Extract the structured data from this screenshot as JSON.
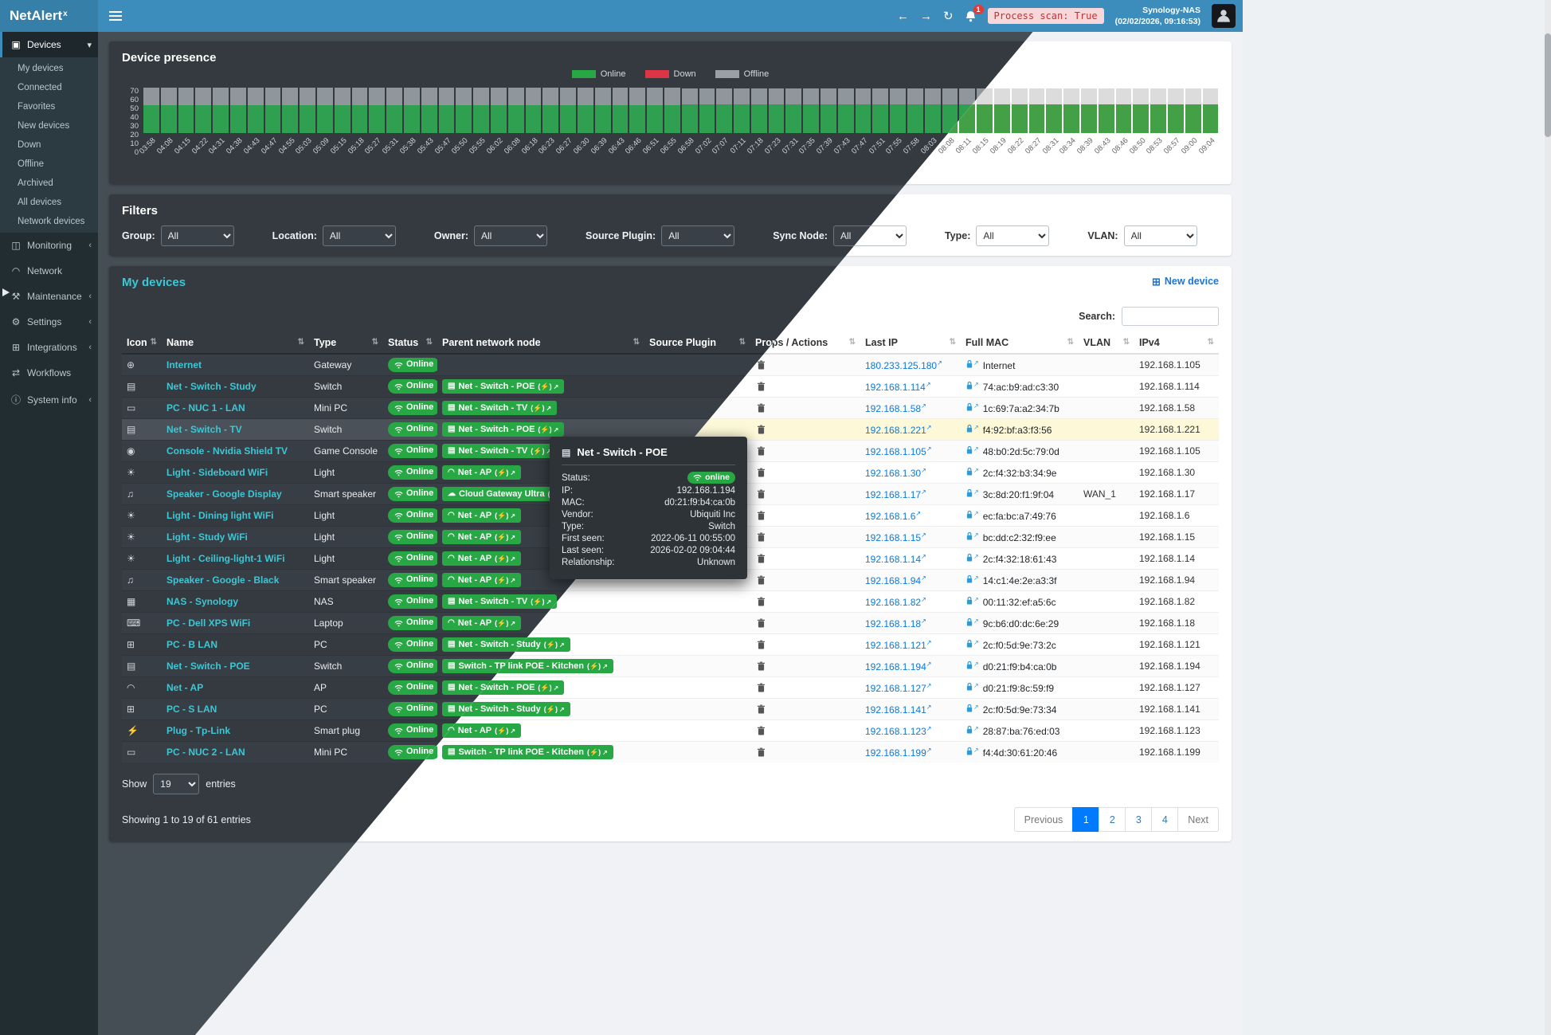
{
  "header": {
    "brand": "NetAlert",
    "brand_sup": "x",
    "notification_count": "1",
    "process_scan_label": "Process scan: True",
    "nas_name": "Synology-NAS",
    "nas_timestamp": "(02/02/2026, 09:16:53)"
  },
  "sidebar": {
    "items": [
      {
        "label": "Devices",
        "icon": "devices-icon",
        "chevron": "down",
        "active": true,
        "children": [
          "My devices",
          "Connected",
          "Favorites",
          "New devices",
          "Down",
          "Offline",
          "Archived",
          "All devices",
          "Network devices"
        ]
      },
      {
        "label": "Monitoring",
        "icon": "monitoring-icon",
        "chevron": "left"
      },
      {
        "label": "Network",
        "icon": "network-icon"
      },
      {
        "label": "Maintenance",
        "icon": "maintenance-icon",
        "chevron": "left"
      },
      {
        "label": "Settings",
        "icon": "settings-icon",
        "chevron": "left"
      },
      {
        "label": "Integrations",
        "icon": "integrations-icon",
        "chevron": "left"
      },
      {
        "label": "Workflows",
        "icon": "workflows-icon"
      },
      {
        "label": "System info",
        "icon": "systeminfo-icon",
        "chevron": "left"
      }
    ]
  },
  "chart_data": {
    "type": "bar",
    "stacked": true,
    "title": "Device presence",
    "xlabel": "",
    "ylabel": "",
    "ylim": [
      0,
      70
    ],
    "yticks": [
      0,
      10,
      20,
      30,
      40,
      50,
      60,
      70
    ],
    "grid": false,
    "legend_position": "top-center",
    "legend": [
      {
        "label": "Online",
        "color": "#28a745"
      },
      {
        "label": "Down",
        "color": "#dc3545"
      },
      {
        "label": "Offline",
        "color": "#a9a9a9"
      }
    ],
    "x": [
      "03:58",
      "04:08",
      "04:15",
      "04:22",
      "04:31",
      "04:38",
      "04:43",
      "04:47",
      "04:55",
      "05:03",
      "05:09",
      "05:15",
      "05:18",
      "05:27",
      "05:31",
      "05:38",
      "05:43",
      "05:47",
      "05:50",
      "05:55",
      "06:02",
      "06:08",
      "06:18",
      "06:23",
      "06:27",
      "06:30",
      "06:39",
      "06:43",
      "06:46",
      "06:51",
      "06:55",
      "06:58",
      "07:02",
      "07:07",
      "07:11",
      "07:18",
      "07:23",
      "07:31",
      "07:35",
      "07:39",
      "07:43",
      "07:47",
      "07:51",
      "07:55",
      "07:58",
      "08:03",
      "08:08",
      "08:11",
      "08:15",
      "08:19",
      "08:22",
      "08:27",
      "08:31",
      "08:34",
      "08:39",
      "08:43",
      "08:46",
      "08:50",
      "08:53",
      "08:57",
      "09:00",
      "09:04"
    ],
    "series": [
      {
        "name": "Online",
        "color": "#28a745",
        "values": [
          42,
          42,
          42,
          42,
          42,
          42,
          42,
          42,
          42,
          42,
          42,
          42,
          42,
          42,
          42,
          42,
          42,
          42,
          42,
          42,
          42,
          42,
          42,
          42,
          42,
          42,
          42,
          42,
          42,
          42,
          42,
          44,
          44,
          44,
          44,
          44,
          44,
          44,
          44,
          44,
          44,
          44,
          44,
          44,
          44,
          44,
          44,
          44,
          44,
          44,
          44,
          44,
          44,
          44,
          44,
          44,
          44,
          44,
          44,
          44,
          44,
          44
        ]
      },
      {
        "name": "Down",
        "color": "#dc3545",
        "values": [
          0,
          0,
          0,
          0,
          0,
          0,
          0,
          0,
          0,
          0,
          0,
          0,
          0,
          0,
          0,
          0,
          0,
          0,
          0,
          0,
          0,
          0,
          0,
          0,
          0,
          0,
          0,
          0,
          0,
          0,
          0,
          0,
          0,
          0,
          0,
          0,
          0,
          0,
          0,
          0,
          0,
          0,
          0,
          0,
          0,
          0,
          0,
          0,
          0,
          0,
          0,
          0,
          0,
          0,
          0,
          0,
          0,
          0,
          0,
          0,
          0,
          0
        ]
      },
      {
        "name": "Offline",
        "color": "#a9a9a9",
        "values": [
          26,
          26,
          26,
          26,
          26,
          26,
          26,
          26,
          26,
          26,
          26,
          26,
          26,
          26,
          26,
          26,
          26,
          26,
          26,
          26,
          26,
          26,
          26,
          26,
          26,
          26,
          26,
          26,
          26,
          26,
          26,
          24,
          24,
          24,
          24,
          24,
          24,
          24,
          24,
          24,
          24,
          24,
          24,
          24,
          24,
          24,
          24,
          24,
          24,
          24,
          24,
          24,
          24,
          24,
          24,
          24,
          24,
          24,
          24,
          24,
          24,
          24
        ]
      }
    ]
  },
  "filters": {
    "title": "Filters",
    "items": [
      {
        "label": "Group:",
        "value": "All"
      },
      {
        "label": "Location:",
        "value": "All"
      },
      {
        "label": "Owner:",
        "value": "All"
      },
      {
        "label": "Source Plugin:",
        "value": "All"
      },
      {
        "label": "Sync Node:",
        "value": "All"
      },
      {
        "label": "Type:",
        "value": "All"
      },
      {
        "label": "VLAN:",
        "value": "All"
      }
    ]
  },
  "devices": {
    "title": "My devices",
    "new_device_label": "New device",
    "search_label": "Search:",
    "search_value": "",
    "status_online_label": "Online",
    "columns": [
      "Icon",
      "Name",
      "Type",
      "Status",
      "Parent network node",
      "Source Plugin",
      "Props / Actions",
      "Last IP",
      "Full MAC",
      "VLAN",
      "IPv4"
    ],
    "rows": [
      {
        "icon": "globe-icon",
        "name": "Internet",
        "type": "Gateway",
        "status": "Online",
        "parent": null,
        "source_plugin": "",
        "last_ip": "180.233.125.180",
        "mac": "Internet",
        "vlan": "",
        "ipv4": "192.168.1.105"
      },
      {
        "icon": "switch-icon",
        "name": "Net - Switch - Study",
        "type": "Switch",
        "status": "Online",
        "parent": {
          "icon": "ethernet-icon",
          "label": "Net - Switch - POE"
        },
        "source_plugin": "",
        "last_ip": "192.168.1.114",
        "mac": "74:ac:b9:ad:c3:30",
        "vlan": "",
        "ipv4": "192.168.1.114"
      },
      {
        "icon": "minipc-icon",
        "name": "PC - NUC 1 - LAN",
        "type": "Mini PC",
        "status": "Online",
        "parent": {
          "icon": "ethernet-icon",
          "label": "Net - Switch - TV"
        },
        "source_plugin": "",
        "last_ip": "192.168.1.58",
        "mac": "1c:69:7a:a2:34:7b",
        "vlan": "",
        "ipv4": "192.168.1.58"
      },
      {
        "icon": "switch-icon",
        "name": "Net - Switch - TV",
        "type": "Switch",
        "status": "Online",
        "highlight": true,
        "parent": {
          "icon": "ethernet-icon",
          "label": "Net - Switch - POE"
        },
        "source_plugin": "",
        "last_ip": "192.168.1.221",
        "mac": "f4:92:bf:a3:f3:56",
        "vlan": "",
        "ipv4": "192.168.1.221"
      },
      {
        "icon": "console-icon",
        "name": "Console - Nvidia Shield TV",
        "type": "Game Console",
        "status": "Online",
        "parent": {
          "icon": "ethernet-icon",
          "label": "Net - Switch - TV"
        },
        "source_plugin": "",
        "last_ip": "192.168.1.105",
        "mac": "48:b0:2d:5c:79:0d",
        "vlan": "",
        "ipv4": "192.168.1.105"
      },
      {
        "icon": "light-icon",
        "name": "Light - Sideboard WiFi",
        "type": "Light",
        "status": "Online",
        "parent": {
          "icon": "wifi-icon",
          "label": "Net - AP"
        },
        "source_plugin": "",
        "last_ip": "192.168.1.30",
        "mac": "2c:f4:32:b3:34:9e",
        "vlan": "",
        "ipv4": "192.168.1.30"
      },
      {
        "icon": "speaker-icon",
        "name": "Speaker - Google Display",
        "type": "Smart speaker",
        "status": "Online",
        "parent": {
          "icon": "sitemap-icon",
          "label": "Cloud Gateway Ultra"
        },
        "source_plugin": "",
        "last_ip": "192.168.1.17",
        "mac": "3c:8d:20:f1:9f:04",
        "vlan": "WAN_1",
        "ipv4": "192.168.1.17"
      },
      {
        "icon": "light-icon",
        "name": "Light - Dining light WiFi",
        "type": "Light",
        "status": "Online",
        "parent": {
          "icon": "wifi-icon",
          "label": "Net - AP"
        },
        "source_plugin": "",
        "last_ip": "192.168.1.6",
        "mac": "ec:fa:bc:a7:49:76",
        "vlan": "",
        "ipv4": "192.168.1.6"
      },
      {
        "icon": "light-icon",
        "name": "Light - Study WiFi",
        "type": "Light",
        "status": "Online",
        "parent": {
          "icon": "wifi-icon",
          "label": "Net - AP"
        },
        "source_plugin": "",
        "last_ip": "192.168.1.15",
        "mac": "bc:dd:c2:32:f9:ee",
        "vlan": "",
        "ipv4": "192.168.1.15"
      },
      {
        "icon": "light-icon",
        "name": "Light - Ceiling-light-1 WiFi",
        "type": "Light",
        "status": "Online",
        "parent": {
          "icon": "wifi-icon",
          "label": "Net - AP"
        },
        "source_plugin": "",
        "last_ip": "192.168.1.14",
        "mac": "2c:f4:32:18:61:43",
        "vlan": "",
        "ipv4": "192.168.1.14"
      },
      {
        "icon": "speaker-icon",
        "name": "Speaker - Google - Black",
        "type": "Smart speaker",
        "status": "Online",
        "parent": {
          "icon": "wifi-icon",
          "label": "Net - AP"
        },
        "source_plugin": "",
        "last_ip": "192.168.1.94",
        "mac": "14:c1:4e:2e:a3:3f",
        "vlan": "",
        "ipv4": "192.168.1.94"
      },
      {
        "icon": "nas-icon",
        "name": "NAS - Synology",
        "type": "NAS",
        "status": "Online",
        "parent": {
          "icon": "ethernet-icon",
          "label": "Net - Switch - TV"
        },
        "source_plugin": "",
        "last_ip": "192.168.1.82",
        "mac": "00:11:32:ef:a5:6c",
        "vlan": "",
        "ipv4": "192.168.1.82"
      },
      {
        "icon": "laptop-icon",
        "name": "PC - Dell XPS WiFi",
        "type": "Laptop",
        "status": "Online",
        "parent": {
          "icon": "wifi-icon",
          "label": "Net - AP"
        },
        "source_plugin": "",
        "last_ip": "192.168.1.18",
        "mac": "9c:b6:d0:dc:6e:29",
        "vlan": "",
        "ipv4": "192.168.1.18"
      },
      {
        "icon": "desktop-icon",
        "name": "PC - B LAN",
        "type": "PC",
        "status": "Online",
        "parent": {
          "icon": "ethernet-icon",
          "label": "Net - Switch - Study"
        },
        "source_plugin": "",
        "last_ip": "192.168.1.121",
        "mac": "2c:f0:5d:9e:73:2c",
        "vlan": "",
        "ipv4": "192.168.1.121"
      },
      {
        "icon": "switch-icon",
        "name": "Net - Switch - POE",
        "type": "Switch",
        "status": "Online",
        "parent": {
          "icon": "ethernet-icon",
          "label": "Switch - TP link POE - Kitchen"
        },
        "source_plugin": "",
        "last_ip": "192.168.1.194",
        "mac": "d0:21:f9:b4:ca:0b",
        "vlan": "",
        "ipv4": "192.168.1.194"
      },
      {
        "icon": "wifi-icon",
        "name": "Net - AP",
        "type": "AP",
        "status": "Online",
        "parent": {
          "icon": "ethernet-icon",
          "label": "Net - Switch - POE"
        },
        "source_plugin": "",
        "last_ip": "192.168.1.127",
        "mac": "d0:21:f9:8c:59:f9",
        "vlan": "",
        "ipv4": "192.168.1.127"
      },
      {
        "icon": "desktop-icon",
        "name": "PC - S LAN",
        "type": "PC",
        "status": "Online",
        "parent": {
          "icon": "ethernet-icon",
          "label": "Net - Switch - Study"
        },
        "source_plugin": "",
        "last_ip": "192.168.1.141",
        "mac": "2c:f0:5d:9e:73:34",
        "vlan": "",
        "ipv4": "192.168.1.141"
      },
      {
        "icon": "plug-icon",
        "name": "Plug - Tp-Link",
        "type": "Smart plug",
        "status": "Online",
        "parent": {
          "icon": "wifi-icon",
          "label": "Net - AP"
        },
        "source_plugin": "",
        "last_ip": "192.168.1.123",
        "mac": "28:87:ba:76:ed:03",
        "vlan": "",
        "ipv4": "192.168.1.123"
      },
      {
        "icon": "minipc-icon",
        "name": "PC - NUC 2 - LAN",
        "type": "Mini PC",
        "status": "Online",
        "parent": {
          "icon": "ethernet-icon",
          "label": "Switch - TP link POE - Kitchen"
        },
        "source_plugin": "",
        "last_ip": "192.168.1.199",
        "mac": "f4:4d:30:61:20:46",
        "vlan": "",
        "ipv4": "192.168.1.199"
      }
    ],
    "show_label": "Show",
    "entries_value": "19",
    "entries_suffix": "entries",
    "summary": "Showing 1 to 19 of 61 entries",
    "pagination": {
      "prev": "Previous",
      "pages": [
        "1",
        "2",
        "3",
        "4"
      ],
      "active": "1",
      "next": "Next"
    }
  },
  "tooltip": {
    "title": "Net - Switch - POE",
    "fields": [
      {
        "label": "Status:",
        "value": "online",
        "pill": true
      },
      {
        "label": "IP:",
        "value": "192.168.1.194"
      },
      {
        "label": "MAC:",
        "value": "d0:21:f9:b4:ca:0b"
      },
      {
        "label": "Vendor:",
        "value": "Ubiquiti Inc"
      },
      {
        "label": "Type:",
        "value": "Switch"
      },
      {
        "label": "First seen:",
        "value": "2022-06-11 00:55:00"
      },
      {
        "label": "Last seen:",
        "value": "2026-02-02 09:04:44"
      },
      {
        "label": "Relationship:",
        "value": "Unknown"
      }
    ]
  },
  "colors": {
    "header": "#3c8dbc",
    "logo_bg": "#367fa9",
    "sidebar": "#222d32",
    "page_dark": "#454d55",
    "card_dark": "#343a40",
    "page_light": "#f0f2f5",
    "online_green": "#28a745",
    "down_red": "#dc3545",
    "offline_gray_dark": "#9aa0a6",
    "offline_gray_light": "#d9d9d9",
    "accent_cyan": "#3bc8d6",
    "link_blue": "#4fb3ec",
    "highlight_row_light": "#fcf8d8",
    "process_scan_bg": "#f8d7da",
    "process_scan_text": "#c9302c"
  }
}
